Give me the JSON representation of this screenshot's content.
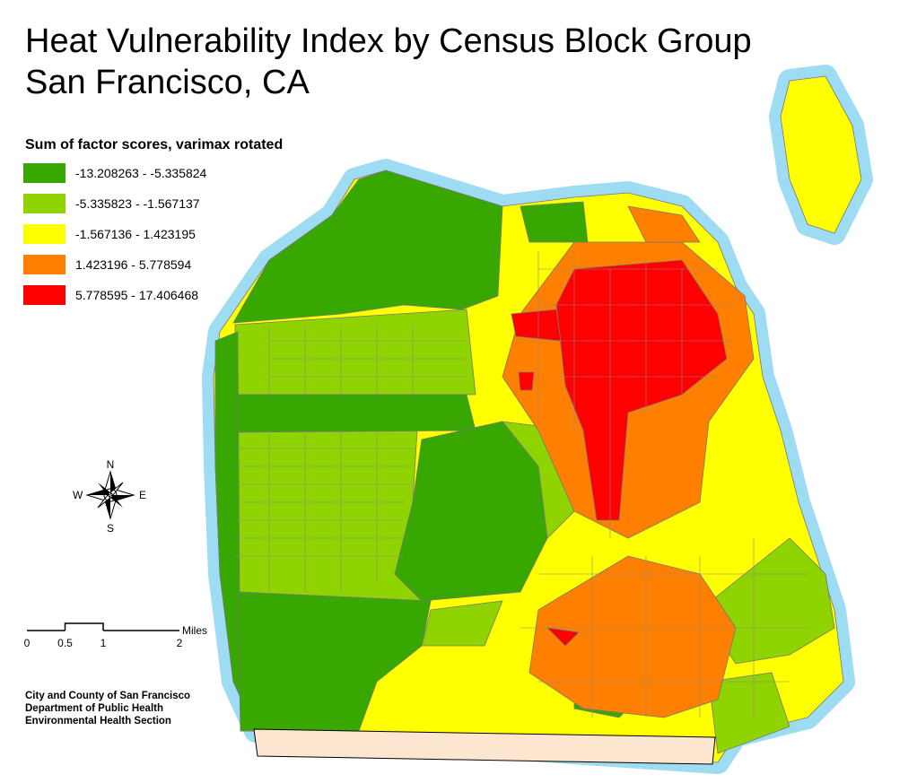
{
  "title": [
    "Heat Vulnerability Index by Census Block Group",
    "San Francisco, CA"
  ],
  "legend": {
    "title": "Sum of factor scores, varimax rotated",
    "items": [
      {
        "label": "-13.208263 - -5.335824",
        "color": "#38a800"
      },
      {
        "label": "-5.335823 - -1.567137",
        "color": "#8fd400"
      },
      {
        "label": "-1.567136 - 1.423195",
        "color": "#ffff00"
      },
      {
        "label": "1.423196 - 5.778594",
        "color": "#ff8000"
      },
      {
        "label": "5.778595 - 17.406468",
        "color": "#ff0000"
      }
    ]
  },
  "compass": {
    "n": "N",
    "e": "E",
    "s": "S",
    "w": "W"
  },
  "scale_bar": {
    "ticks": [
      "0",
      "0.5",
      "1",
      "2"
    ],
    "unit": "Miles"
  },
  "credits": [
    "City and County of San Francisco",
    "Department of Public Health",
    "Environmental Health Section"
  ]
}
